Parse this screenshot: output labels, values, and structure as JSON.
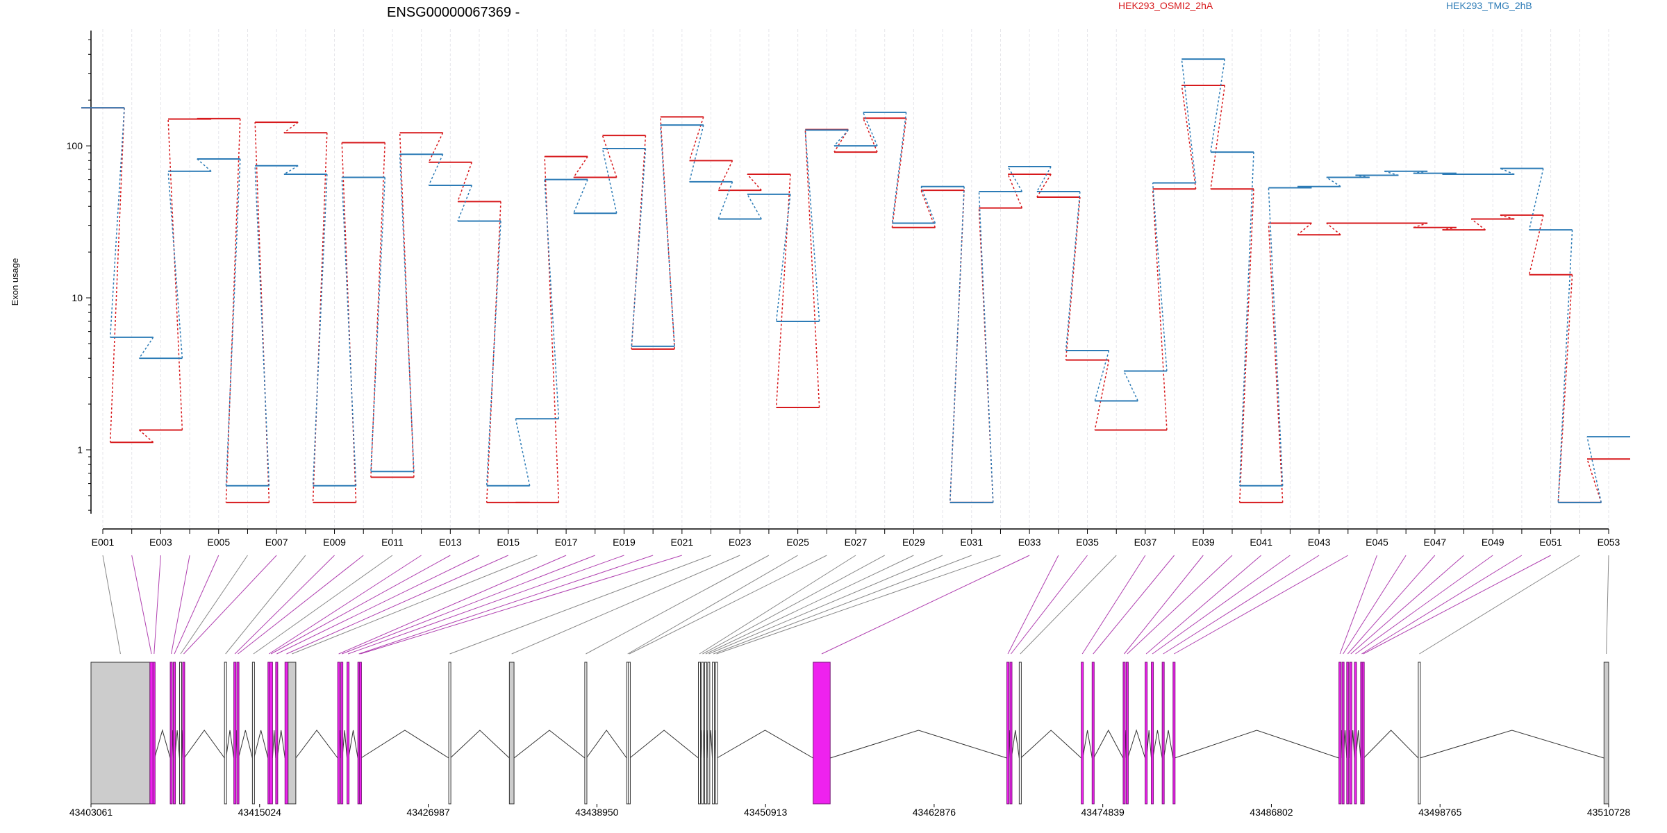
{
  "title": "ENSG00000067369 -",
  "ylabel": "Exon usage",
  "legend": [
    {
      "label": "HEK293_OSMI2_2hA",
      "color": "#d7191c"
    },
    {
      "label": "HEK293_TMG_2hB",
      "color": "#2c7bb6"
    }
  ],
  "chart_data": [
    {
      "type": "line",
      "title": "ENSG00000067369 -",
      "ylabel": "Exon usage",
      "yscale": "log",
      "ylim": [
        0.38,
        550
      ],
      "yticks": [
        1,
        10,
        100
      ],
      "xtick_labels": [
        "E001",
        "E003",
        "E005",
        "E007",
        "E009",
        "E011",
        "E013",
        "E015",
        "E017",
        "E019",
        "E021",
        "E023",
        "E025",
        "E027",
        "E029",
        "E031",
        "E033",
        "E035",
        "E037",
        "E039",
        "E041",
        "E043",
        "E045",
        "E047",
        "E049",
        "E051",
        "E053"
      ],
      "categories": [
        "E001",
        "E002",
        "E003",
        "E004",
        "E005",
        "E006",
        "E007",
        "E008",
        "E009",
        "E010",
        "E011",
        "E012",
        "E013",
        "E014",
        "E015",
        "E016",
        "E017",
        "E018",
        "E019",
        "E020",
        "E021",
        "E022",
        "E023",
        "E024",
        "E025",
        "E026",
        "E027",
        "E028",
        "E029",
        "E030",
        "E031",
        "E032",
        "E033",
        "E034",
        "E035",
        "E036",
        "E037",
        "E038",
        "E039",
        "E040",
        "E041",
        "E042",
        "E043",
        "E044",
        "E045",
        "E046",
        "E047",
        "E048",
        "E049",
        "E050",
        "E051",
        "E052",
        "E053"
      ],
      "series": [
        {
          "name": "HEK293_OSMI2_2hA",
          "color": "#d7191c",
          "values": [
            178,
            1.12,
            1.35,
            150,
            151,
            0.45,
            143,
            122,
            0.45,
            105,
            0.66,
            122,
            78,
            43,
            0.45,
            0.45,
            85,
            62,
            117,
            4.6,
            155,
            80,
            51,
            65,
            1.9,
            128,
            91,
            152,
            29,
            51,
            0.45,
            39,
            65,
            46,
            3.9,
            1.35,
            1.35,
            52,
            250,
            52,
            0.45,
            31,
            26,
            31,
            31,
            31,
            29,
            28,
            33,
            35,
            14.2,
            0.45,
            0.87
          ]
        },
        {
          "name": "HEK293_TMG_2hB",
          "color": "#2c7bb6",
          "values": [
            178,
            5.5,
            4.0,
            68,
            82,
            0.58,
            74,
            65,
            0.58,
            62,
            0.72,
            88,
            55,
            32,
            0.58,
            1.6,
            60,
            36,
            96,
            4.8,
            137,
            58,
            33,
            48,
            7.0,
            127,
            100,
            166,
            31,
            54,
            0.45,
            50,
            73,
            50,
            4.5,
            2.1,
            3.3,
            57,
            372,
            91,
            0.58,
            53,
            54,
            62,
            64,
            68,
            66,
            65,
            65,
            71,
            28,
            0.45,
            1.22
          ]
        }
      ]
    },
    {
      "type": "gene-model",
      "xlabel": "",
      "xlim": [
        43403061,
        43510728
      ],
      "xticks": [
        43403061,
        43415024,
        43426987,
        43438950,
        43450913,
        43462876,
        43474839,
        43486802,
        43498765,
        43510728
      ],
      "xtick_labels": [
        "43403061",
        "43415024",
        "43426987",
        "43438950",
        "43450913",
        "43462876",
        "43474839",
        "43486802",
        "43498765",
        "43510728"
      ],
      "exon_colors": {
        "significant": "#ee22ee",
        "not_significant": "#ffffff",
        "utr": "#cccccc"
      },
      "exons": [
        {
          "id": "E001",
          "start": 43403061,
          "end": 43407242,
          "sig": false,
          "utr": true
        },
        {
          "id": "E002",
          "start": 43407242,
          "end": 43407462,
          "sig": true
        },
        {
          "id": "E003",
          "start": 43407462,
          "end": 43407572,
          "sig": true
        },
        {
          "id": "E004",
          "start": 43408682,
          "end": 43408792,
          "sig": true
        },
        {
          "id": "E005",
          "start": 43408902,
          "end": 43409012,
          "sig": true
        },
        {
          "id": "E006",
          "start": 43409342,
          "end": 43409452,
          "sig": false
        },
        {
          "id": "E007",
          "start": 43409562,
          "end": 43409672,
          "sig": true
        },
        {
          "id": "E008",
          "start": 43412532,
          "end": 43412642,
          "sig": false
        },
        {
          "id": "E009",
          "start": 43413192,
          "end": 43413302,
          "sig": true
        },
        {
          "id": "E010",
          "start": 43413412,
          "end": 43413522,
          "sig": true
        },
        {
          "id": "E011",
          "start": 43414512,
          "end": 43414622,
          "sig": false
        },
        {
          "id": "E012",
          "start": 43415612,
          "end": 43415722,
          "sig": true
        },
        {
          "id": "E013",
          "start": 43415722,
          "end": 43415942,
          "sig": true
        },
        {
          "id": "E014",
          "start": 43416162,
          "end": 43416272,
          "sig": true
        },
        {
          "id": "E015",
          "start": 43416822,
          "end": 43417042,
          "sig": true
        },
        {
          "id": "E016",
          "start": 43417042,
          "end": 43417592,
          "sig": false,
          "utr": true
        },
        {
          "id": "E017",
          "start": 43420562,
          "end": 43420672,
          "sig": true
        },
        {
          "id": "E018",
          "start": 43420782,
          "end": 43420892,
          "sig": true
        },
        {
          "id": "E019",
          "start": 43421222,
          "end": 43421332,
          "sig": true
        },
        {
          "id": "E020",
          "start": 43421992,
          "end": 43422102,
          "sig": true
        },
        {
          "id": "E021",
          "start": 43422102,
          "end": 43422212,
          "sig": true
        },
        {
          "id": "E022",
          "start": 43428442,
          "end": 43428552,
          "sig": false
        },
        {
          "id": "E023",
          "start": 43432742,
          "end": 43433072,
          "sig": false,
          "utr": true
        },
        {
          "id": "E024",
          "start": 43438092,
          "end": 43438202,
          "sig": false
        },
        {
          "id": "E025",
          "start": 43441062,
          "end": 43441172,
          "sig": false
        },
        {
          "id": "E026",
          "start": 43441172,
          "end": 43441282,
          "sig": false
        },
        {
          "id": "E027",
          "start": 43446152,
          "end": 43446262,
          "sig": false
        },
        {
          "id": "E028",
          "start": 43446372,
          "end": 43446482,
          "sig": false
        },
        {
          "id": "E029",
          "start": 43446592,
          "end": 43446702,
          "sig": false
        },
        {
          "id": "E030",
          "start": 43446812,
          "end": 43446922,
          "sig": false
        },
        {
          "id": "E031",
          "start": 43447142,
          "end": 43447252,
          "sig": false
        },
        {
          "id": "E032",
          "start": 43447362,
          "end": 43447472,
          "sig": false
        },
        {
          "id": "E033",
          "start": 43454292,
          "end": 43455502,
          "sig": true
        },
        {
          "id": "E034",
          "start": 43468032,
          "end": 43468142,
          "sig": true
        },
        {
          "id": "E035",
          "start": 43468252,
          "end": 43468362,
          "sig": true
        },
        {
          "id": "E036",
          "start": 43468912,
          "end": 43469022,
          "sig": false
        },
        {
          "id": "E037",
          "start": 43473312,
          "end": 43473422,
          "sig": true
        },
        {
          "id": "E038",
          "start": 43474082,
          "end": 43474192,
          "sig": true
        },
        {
          "id": "E039",
          "start": 43476282,
          "end": 43476392,
          "sig": true
        },
        {
          "id": "E040",
          "start": 43476502,
          "end": 43476612,
          "sig": true
        },
        {
          "id": "E041",
          "start": 43477842,
          "end": 43477952,
          "sig": true
        },
        {
          "id": "E042",
          "start": 43478282,
          "end": 43478392,
          "sig": true
        },
        {
          "id": "E043",
          "start": 43479052,
          "end": 43479162,
          "sig": true
        },
        {
          "id": "E044",
          "start": 43479822,
          "end": 43479932,
          "sig": true
        },
        {
          "id": "E045",
          "start": 43491592,
          "end": 43491702,
          "sig": true
        },
        {
          "id": "E046",
          "start": 43491812,
          "end": 43491922,
          "sig": true
        },
        {
          "id": "E047",
          "start": 43492142,
          "end": 43492252,
          "sig": true
        },
        {
          "id": "E048",
          "start": 43492362,
          "end": 43492472,
          "sig": true
        },
        {
          "id": "E049",
          "start": 43492692,
          "end": 43492802,
          "sig": true
        },
        {
          "id": "E050",
          "start": 43493132,
          "end": 43493242,
          "sig": true
        },
        {
          "id": "E051",
          "start": 43493242,
          "end": 43493352,
          "sig": true
        },
        {
          "id": "E052",
          "start": 43497222,
          "end": 43497332,
          "sig": false
        },
        {
          "id": "E053",
          "start": 43510398,
          "end": 43510728,
          "sig": false,
          "utr": true
        }
      ]
    }
  ]
}
